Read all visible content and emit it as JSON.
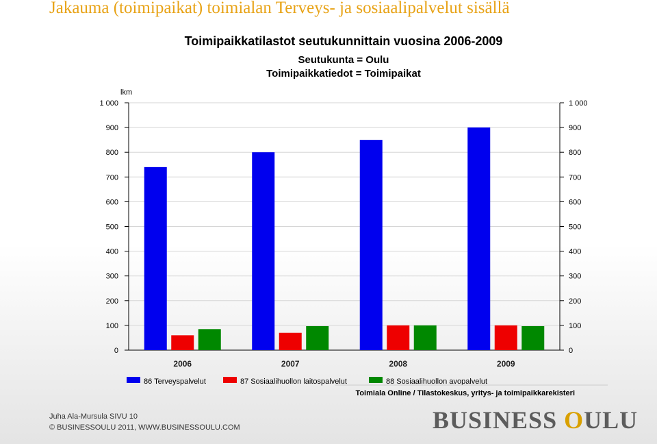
{
  "slide": {
    "title": "Jakauma (toimipaikat) toimialan Terveys- ja sosiaalipalvelut sisällä",
    "title_color": "#e8a317"
  },
  "footer": {
    "author": "Juha Ala-Mursula  SIVU 10",
    "copyright": "© BUSINESSOULU 2011, WWW.BUSINESSOULU.COM"
  },
  "logo": {
    "part1": "BUSINESS ",
    "o": "O",
    "part2": "ULU"
  },
  "chart_data": {
    "type": "bar",
    "title": "Toimipaikkatilastot seutukunnittain vuosina 2006-2009",
    "subtitle_1": "Seutukunta = Oulu",
    "subtitle_2": "Toimipaikkatiedot = Toimipaikat",
    "ylabel": "lkm",
    "xlabel": "",
    "categories": [
      "2006",
      "2007",
      "2008",
      "2009"
    ],
    "series": [
      {
        "name": "86 Terveyspalvelut",
        "color": "#0000ee",
        "values": [
          740,
          800,
          850,
          900
        ]
      },
      {
        "name": "87 Sosiaalihuollon laitospalvelut",
        "color": "#ee0000",
        "values": [
          60,
          70,
          100,
          100
        ]
      },
      {
        "name": "88 Sosiaalihuollon avopalvelut",
        "color": "#008800",
        "values": [
          85,
          97,
          100,
          97
        ]
      }
    ],
    "ylim": [
      0,
      1000
    ],
    "yticks": [
      "0",
      "100",
      "200",
      "300",
      "400",
      "500",
      "600",
      "700",
      "800",
      "900",
      "1 000"
    ],
    "grid": true,
    "legend_position": "bottom",
    "source": "Toimiala Online / Tilastokeskus, yritys- ja toimipaikkarekisteri"
  }
}
